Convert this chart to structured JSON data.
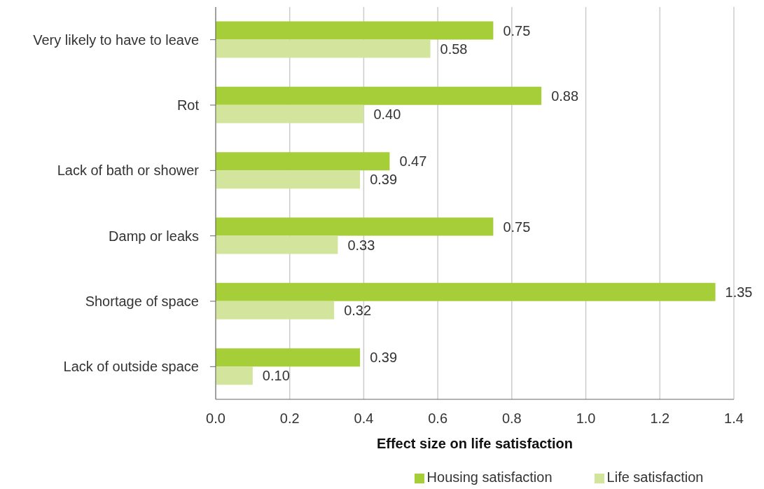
{
  "chart_data": {
    "type": "bar",
    "orientation": "horizontal",
    "xlabel": "Effect size on life satisfaction",
    "categories": [
      "Very likely to have to leave",
      "Rot",
      "Lack of bath or shower",
      "Damp or leaks",
      "Shortage of space",
      "Lack of outside space"
    ],
    "series": [
      {
        "name": "Housing satisfaction",
        "color": "#a6ce39",
        "values": [
          0.75,
          0.88,
          0.47,
          0.75,
          1.35,
          0.39
        ],
        "value_labels": [
          "0.75",
          "0.88",
          "0.47",
          "0.75",
          "1.35",
          "0.39"
        ]
      },
      {
        "name": "Life satisfaction",
        "color": "#d3e59c",
        "values": [
          0.58,
          0.4,
          0.39,
          0.33,
          0.32,
          0.1
        ],
        "value_labels": [
          "0.58",
          "0.40",
          "0.39",
          "0.33",
          "0.32",
          "0.10"
        ]
      }
    ],
    "xlim": [
      0,
      1.4
    ],
    "xticks": [
      {
        "value": 0,
        "label": "0.0"
      },
      0.2,
      0.4,
      0.6,
      0.8,
      {
        "value": 1,
        "label": "1.0"
      },
      1.2,
      1.4
    ],
    "grid": "x",
    "legend": "bottom"
  }
}
